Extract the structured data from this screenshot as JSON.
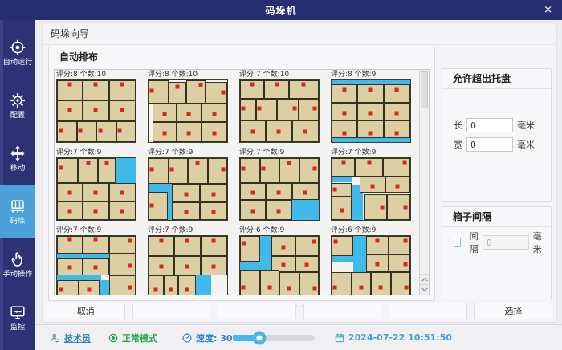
{
  "title_bar": {
    "title": "码垛机",
    "close": "✕"
  },
  "sidebar": {
    "active_index": 3,
    "items": [
      {
        "label": "自动运行",
        "icon": "target-icon"
      },
      {
        "label": "配置",
        "icon": "gear-icon"
      },
      {
        "label": "移动",
        "icon": "move-icon"
      },
      {
        "label": "码垛",
        "icon": "pallet-icon"
      },
      {
        "label": "手动操作",
        "icon": "hand-icon"
      },
      {
        "label": "监控",
        "icon": "monitor-icon"
      }
    ]
  },
  "wizard": {
    "title": "码垛向导",
    "section_title": "自动排布"
  },
  "tiles": [
    {
      "label": "评分:8 个数:10",
      "score": 8,
      "count": 10,
      "boxes": [
        [
          0,
          0,
          33,
          33,
          50,
          16
        ],
        [
          33,
          0,
          33,
          33,
          50,
          16
        ],
        [
          66,
          0,
          34,
          33,
          50,
          16
        ],
        [
          0,
          33,
          33,
          33,
          50,
          45
        ],
        [
          33,
          33,
          33,
          33,
          50,
          45
        ],
        [
          66,
          33,
          34,
          33,
          50,
          45
        ],
        [
          0,
          66,
          25,
          34,
          16,
          45
        ],
        [
          25,
          66,
          25,
          34,
          16,
          45
        ],
        [
          50,
          66,
          25,
          34,
          16,
          45
        ],
        [
          75,
          66,
          25,
          34,
          16,
          45
        ]
      ],
      "gaps": []
    },
    {
      "label": "评分:8 个数:10",
      "score": 8,
      "count": 10,
      "boxes": [
        [
          0,
          0,
          25,
          38,
          14,
          45
        ],
        [
          25,
          3,
          23,
          35,
          50,
          18
        ],
        [
          48,
          0,
          24,
          38,
          78,
          18
        ],
        [
          72,
          3,
          28,
          35,
          84,
          45
        ],
        [
          5,
          38,
          31,
          30,
          50,
          55
        ],
        [
          36,
          38,
          31,
          30,
          50,
          55
        ],
        [
          67,
          38,
          33,
          30,
          50,
          55
        ],
        [
          5,
          68,
          31,
          32,
          50,
          58
        ],
        [
          36,
          68,
          31,
          32,
          50,
          58
        ],
        [
          67,
          68,
          33,
          32,
          50,
          58
        ]
      ],
      "gaps": []
    },
    {
      "label": "评分:7 个数:10",
      "score": 7,
      "count": 10,
      "boxes": [
        [
          0,
          0,
          31,
          30,
          50,
          18
        ],
        [
          31,
          0,
          31,
          30,
          50,
          18
        ],
        [
          62,
          0,
          38,
          30,
          50,
          18
        ],
        [
          0,
          30,
          20,
          35,
          15,
          45
        ],
        [
          20,
          30,
          27,
          35,
          15,
          45
        ],
        [
          47,
          30,
          27,
          35,
          84,
          45
        ],
        [
          74,
          30,
          26,
          35,
          84,
          45
        ],
        [
          0,
          65,
          33,
          35,
          50,
          50
        ],
        [
          33,
          65,
          33,
          35,
          50,
          50
        ],
        [
          66,
          65,
          34,
          35,
          50,
          50
        ]
      ],
      "gaps": []
    },
    {
      "label": "评分:8 个数:9",
      "score": 8,
      "count": 9,
      "boxes": [
        [
          0,
          7,
          33,
          29,
          50,
          28
        ],
        [
          33,
          7,
          33,
          29,
          50,
          28
        ],
        [
          66,
          7,
          34,
          29,
          50,
          28
        ],
        [
          0,
          36,
          33,
          29,
          50,
          62
        ],
        [
          33,
          36,
          33,
          29,
          50,
          62
        ],
        [
          66,
          36,
          34,
          29,
          50,
          62
        ],
        [
          0,
          65,
          33,
          28,
          50,
          75
        ],
        [
          33,
          65,
          33,
          28,
          50,
          75
        ],
        [
          66,
          65,
          34,
          28,
          50,
          75
        ]
      ],
      "gaps": [
        [
          0,
          0,
          100,
          7
        ],
        [
          0,
          93,
          100,
          7
        ]
      ]
    },
    {
      "label": "评分:7 个数:9",
      "score": 7,
      "count": 9,
      "boxes": [
        [
          0,
          0,
          27,
          40,
          15,
          38
        ],
        [
          27,
          0,
          25,
          40,
          50,
          18
        ],
        [
          52,
          0,
          22,
          40,
          50,
          18
        ],
        [
          0,
          40,
          33,
          30,
          50,
          55
        ],
        [
          33,
          40,
          33,
          30,
          50,
          55
        ],
        [
          66,
          40,
          34,
          30,
          50,
          55
        ],
        [
          0,
          70,
          33,
          30,
          50,
          55
        ],
        [
          33,
          70,
          33,
          30,
          50,
          55
        ],
        [
          66,
          70,
          34,
          30,
          50,
          55
        ]
      ],
      "gaps": [
        [
          74,
          0,
          26,
          40
        ]
      ]
    },
    {
      "label": "评分:7 个数:9",
      "score": 7,
      "count": 9,
      "boxes": [
        [
          0,
          0,
          25,
          42,
          14,
          42
        ],
        [
          25,
          0,
          25,
          42,
          14,
          42
        ],
        [
          50,
          0,
          25,
          42,
          50,
          18
        ],
        [
          75,
          0,
          25,
          42,
          84,
          42
        ],
        [
          30,
          42,
          35,
          29,
          50,
          58
        ],
        [
          65,
          42,
          35,
          29,
          50,
          58
        ],
        [
          30,
          71,
          35,
          29,
          50,
          58
        ],
        [
          65,
          71,
          35,
          29,
          50,
          58
        ],
        [
          0,
          55,
          24,
          45,
          14,
          48
        ]
      ],
      "gaps": [
        [
          0,
          42,
          30,
          13
        ],
        [
          24,
          55,
          6,
          45
        ]
      ]
    },
    {
      "label": "评分:7 个数:9",
      "score": 7,
      "count": 9,
      "boxes": [
        [
          0,
          0,
          25,
          40,
          14,
          42
        ],
        [
          25,
          0,
          25,
          40,
          14,
          42
        ],
        [
          50,
          0,
          25,
          40,
          50,
          18
        ],
        [
          75,
          0,
          25,
          40,
          84,
          42
        ],
        [
          0,
          40,
          33,
          28,
          50,
          55
        ],
        [
          33,
          40,
          33,
          28,
          50,
          55
        ],
        [
          66,
          40,
          34,
          28,
          50,
          55
        ],
        [
          0,
          68,
          33,
          32,
          50,
          55
        ],
        [
          33,
          68,
          33,
          32,
          50,
          55
        ]
      ],
      "gaps": [
        [
          66,
          68,
          34,
          32
        ]
      ]
    },
    {
      "label": "评分:7 个数:9",
      "score": 7,
      "count": 9,
      "boxes": [
        [
          0,
          0,
          30,
          30,
          50,
          18
        ],
        [
          30,
          0,
          35,
          30,
          50,
          18
        ],
        [
          65,
          0,
          35,
          30,
          82,
          18
        ],
        [
          36,
          30,
          32,
          26,
          50,
          58
        ],
        [
          68,
          30,
          32,
          26,
          50,
          58
        ],
        [
          0,
          40,
          26,
          22,
          14,
          48
        ],
        [
          0,
          62,
          26,
          38,
          50,
          58
        ],
        [
          42,
          58,
          28,
          42,
          82,
          50
        ],
        [
          70,
          58,
          30,
          42,
          82,
          50
        ]
      ],
      "gaps": [
        [
          0,
          30,
          26,
          9
        ],
        [
          26,
          44,
          14,
          56
        ]
      ]
    },
    {
      "label": "评分:7 个数:9",
      "score": 7,
      "count": 9,
      "boxes": [
        [
          0,
          0,
          33,
          28,
          50,
          16
        ],
        [
          33,
          0,
          33,
          28,
          50,
          16
        ],
        [
          66,
          0,
          34,
          28,
          82,
          25
        ],
        [
          0,
          36,
          33,
          28,
          50,
          55
        ],
        [
          33,
          36,
          33,
          28,
          50,
          55
        ],
        [
          66,
          28,
          34,
          36,
          82,
          55
        ],
        [
          0,
          72,
          28,
          28,
          14,
          55
        ],
        [
          28,
          72,
          26,
          28,
          50,
          55
        ],
        [
          66,
          64,
          34,
          36,
          82,
          55
        ]
      ],
      "gaps": [
        [
          0,
          28,
          66,
          8
        ],
        [
          0,
          64,
          56,
          8
        ],
        [
          54,
          72,
          12,
          28
        ]
      ]
    },
    {
      "label": "评分:7 个数:9",
      "score": 7,
      "count": 9,
      "boxes": [
        [
          0,
          0,
          33,
          32,
          50,
          22
        ],
        [
          33,
          0,
          33,
          32,
          50,
          22
        ],
        [
          66,
          0,
          34,
          32,
          50,
          22
        ],
        [
          0,
          32,
          33,
          32,
          50,
          55
        ],
        [
          33,
          32,
          33,
          32,
          50,
          55
        ],
        [
          66,
          32,
          34,
          32,
          50,
          55
        ],
        [
          0,
          64,
          19,
          36,
          50,
          65
        ],
        [
          19,
          64,
          19,
          36,
          50,
          65
        ],
        [
          38,
          64,
          22,
          36,
          50,
          65
        ]
      ],
      "gaps": [
        [
          60,
          64,
          20,
          36
        ]
      ]
    },
    {
      "label": "评分:6 个数:9",
      "score": 6,
      "count": 9,
      "boxes": [
        [
          0,
          0,
          26,
          42,
          15,
          28
        ],
        [
          40,
          0,
          30,
          32,
          50,
          58
        ],
        [
          70,
          0,
          30,
          32,
          82,
          28
        ],
        [
          40,
          32,
          30,
          26,
          50,
          58
        ],
        [
          70,
          32,
          30,
          26,
          50,
          58
        ],
        [
          0,
          54,
          25,
          46,
          15,
          65
        ],
        [
          25,
          54,
          25,
          46,
          50,
          65
        ],
        [
          50,
          58,
          25,
          42,
          50,
          65
        ],
        [
          75,
          58,
          25,
          42,
          82,
          65
        ]
      ],
      "gaps": [
        [
          26,
          0,
          14,
          54
        ],
        [
          0,
          42,
          26,
          12
        ]
      ]
    },
    {
      "label": "评分:6 个数:9",
      "score": 6,
      "count": 9,
      "boxes": [
        [
          0,
          0,
          28,
          32,
          15,
          25
        ],
        [
          44,
          0,
          28,
          30,
          50,
          25
        ],
        [
          72,
          0,
          28,
          30,
          82,
          25
        ],
        [
          44,
          30,
          28,
          28,
          50,
          58
        ],
        [
          72,
          30,
          28,
          28,
          82,
          58
        ],
        [
          0,
          58,
          25,
          42,
          15,
          62
        ],
        [
          25,
          58,
          25,
          42,
          50,
          62
        ],
        [
          50,
          58,
          25,
          42,
          50,
          62
        ],
        [
          75,
          58,
          25,
          42,
          82,
          62
        ]
      ],
      "gaps": [
        [
          28,
          0,
          16,
          58
        ],
        [
          0,
          32,
          28,
          10
        ]
      ]
    }
  ],
  "right_panel": {
    "overhang": {
      "title": "允许超出托盘",
      "length_label": "长",
      "width_label": "宽",
      "length_value": "0",
      "width_value": "0",
      "unit": "毫米"
    },
    "gap": {
      "title": "箱子间隔",
      "checkbox_label": "间隔",
      "checked": false,
      "value": "0",
      "unit": "毫米"
    }
  },
  "footer": {
    "dots": 6,
    "buttons": [
      {
        "label": "取消",
        "name": "cancel-button"
      },
      {
        "label": "",
        "name": "empty-button-1"
      },
      {
        "label": "",
        "name": "empty-button-2"
      },
      {
        "label": "",
        "name": "empty-button-3"
      },
      {
        "label": "",
        "name": "empty-button-4"
      },
      {
        "label": "选择",
        "name": "select-button"
      }
    ]
  },
  "status_bar": {
    "user": "技术员",
    "mode": "正常模式",
    "speed_label": "速度: 30%",
    "speed_percent": 30,
    "datetime": "2024-07-22 10:51:50"
  },
  "colors": {
    "titlebar": "#272d71",
    "sidebar": "#2c3274",
    "sidebar_active": "#4ba1d8",
    "box_fill": "#dccfa3",
    "box_border": "#32321f",
    "gap_fill": "#41b9ea",
    "marker_red": "#d9281c",
    "accent_blue": "#2e86c8",
    "status_green": "#25a845",
    "slider_blue": "#49b7ea"
  }
}
